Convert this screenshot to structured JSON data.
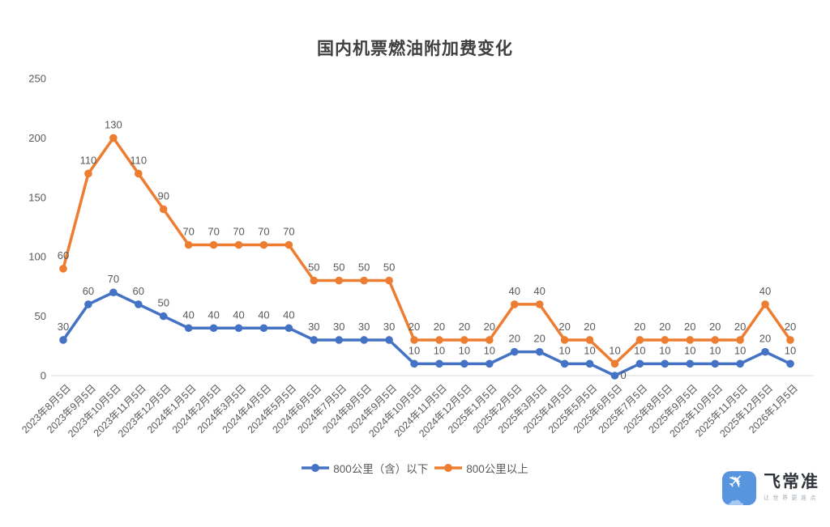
{
  "title": "国内机票燃油附加费变化",
  "chart_data": {
    "type": "line",
    "stacked": true,
    "title": "国内机票燃油附加费变化",
    "categories": [
      "2023年8月5日",
      "2023年9月5日",
      "2023年10月5日",
      "2023年11月5日",
      "2023年12月5日",
      "2024年1月5日",
      "2024年2月5日",
      "2024年3月5日",
      "2024年4月5日",
      "2024年5月5日",
      "2024年6月5日",
      "2024年7月5日",
      "2024年8月5日",
      "2024年9月5日",
      "2024年10月5日",
      "2024年11月5日",
      "2024年12月5日",
      "2025年1月5日",
      "2025年2月5日",
      "2025年3月5日",
      "2025年4月5日",
      "2025年5月5日",
      "2025年6月5日",
      "2025年7月5日",
      "2025年8月5日",
      "2025年9月5日",
      "2025年10月5日",
      "2025年11月5日",
      "2025年12月5日",
      "2026年1月5日"
    ],
    "series": [
      {
        "name": "800公里（含）以下",
        "color": "#4472C4",
        "values": [
          30,
          60,
          70,
          60,
          50,
          40,
          40,
          40,
          40,
          40,
          30,
          30,
          30,
          30,
          10,
          10,
          10,
          10,
          20,
          20,
          10,
          10,
          0,
          10,
          10,
          10,
          10,
          10,
          20,
          10
        ]
      },
      {
        "name": "800公里以上",
        "color": "#ED7D31",
        "values": [
          60,
          110,
          130,
          110,
          90,
          70,
          70,
          70,
          70,
          70,
          50,
          50,
          50,
          50,
          20,
          20,
          20,
          20,
          40,
          40,
          20,
          20,
          10,
          20,
          20,
          20,
          20,
          20,
          40,
          20
        ]
      }
    ],
    "xlabel": "",
    "ylabel": "",
    "ylim": [
      0,
      250
    ],
    "yticks": [
      0,
      50,
      100,
      150,
      200,
      250
    ],
    "grid": false,
    "data_labels": true,
    "legend_position": "bottom",
    "label_color": "#595959",
    "axis_line_color": "#D9D9D9"
  },
  "branding": {
    "name": "飞常准",
    "tagline": "让世界更准点",
    "icon": "airplane-cloud-icon",
    "icon_bg_color": "#5796DF"
  }
}
